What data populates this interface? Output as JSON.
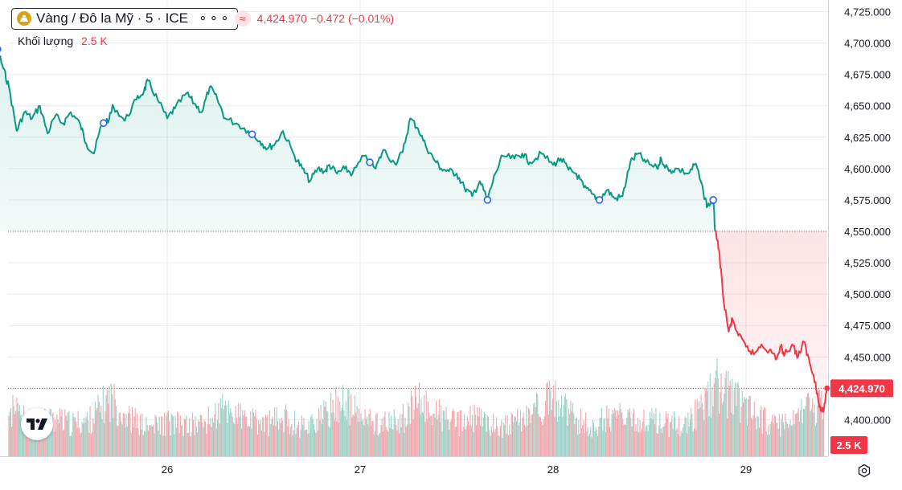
{
  "legend": {
    "symbol_title": "Vàng / Đô la Mỹ · 5 · ICE",
    "more_icon": "⚬⚬⚬",
    "price_summary": "4,424.970  −0.472 (−0.01%)",
    "volume_label": "Khối lượng",
    "volume_value": "2.5 K",
    "wave_icon": "≈"
  },
  "icons": [
    "gold-icon",
    "more-icon",
    "wave-icon",
    "tradingview-logo-icon",
    "settings-gear-icon"
  ],
  "colors": {
    "up": "#089981",
    "down": "#f23645",
    "vol_up": "#9ad2c6",
    "vol_down": "#f5a3aa",
    "label_bg": "#f23645",
    "grid": "#e8eaee"
  },
  "chart_data": {
    "type": "line",
    "title": "",
    "xlabel": "",
    "ylabel": "",
    "x_ticks": [
      "26",
      "27",
      "28",
      "29"
    ],
    "x_day_range": [
      25.0,
      29.44
    ],
    "y_ticks": [
      "4,725.000",
      "4,700.000",
      "4,675.000",
      "4,650.000",
      "4,625.000",
      "4,600.000",
      "4,575.000",
      "4,550.000",
      "4,525.000",
      "4,500.000",
      "4,475.000",
      "4,450.000",
      "4,425.000",
      "4,400.000"
    ],
    "ylim": [
      4383,
      4727
    ],
    "baseline": 4550,
    "last_price": 4424.97,
    "last_price_label": "4,424.970",
    "volume_label": "2.5 K",
    "grid": true,
    "series": [
      {
        "color": "#089981",
        "x": [
          25.0,
          25.05,
          25.1,
          25.12,
          25.15,
          25.18,
          25.22,
          25.26,
          25.3,
          25.34,
          25.38,
          25.42,
          25.46,
          25.5,
          25.55,
          25.58,
          25.62,
          25.66,
          25.7,
          25.72,
          25.78,
          25.84,
          25.88,
          25.9,
          25.95,
          26.0,
          26.04,
          26.1,
          26.14,
          26.18,
          26.22,
          26.26,
          26.3,
          26.36,
          26.42,
          26.48,
          26.52,
          26.56,
          26.6,
          26.66,
          26.7,
          26.74,
          26.78,
          26.82,
          26.84,
          26.88,
          26.92,
          26.96,
          27.02,
          27.08,
          27.12,
          27.18,
          27.22,
          27.26,
          27.3,
          27.34,
          27.38,
          27.42,
          27.46,
          27.5,
          27.54,
          27.58,
          27.62,
          27.66,
          27.7,
          27.74,
          27.8,
          27.84,
          27.88,
          27.94,
          28.0,
          28.04,
          28.08,
          28.12,
          28.16,
          28.2,
          28.24,
          28.28,
          28.32,
          28.36,
          28.4,
          28.44,
          28.48,
          28.54,
          28.56,
          28.6,
          28.64,
          28.7,
          28.74,
          28.78,
          28.8,
          28.83,
          28.84
        ],
        "y": [
          4655,
          4668,
          4675,
          4695,
          4680,
          4665,
          4630,
          4645,
          4640,
          4650,
          4628,
          4642,
          4636,
          4645,
          4635,
          4620,
          4612,
          4635,
          4640,
          4650,
          4638,
          4655,
          4662,
          4670,
          4655,
          4640,
          4648,
          4660,
          4652,
          4645,
          4665,
          4655,
          4640,
          4636,
          4630,
          4622,
          4616,
          4620,
          4630,
          4610,
          4600,
          4590,
          4600,
          4598,
          4603,
          4596,
          4600,
          4596,
          4610,
          4600,
          4615,
          4604,
          4613,
          4640,
          4632,
          4618,
          4608,
          4600,
          4598,
          4596,
          4585,
          4578,
          4590,
          4575,
          4596,
          4610,
          4608,
          4612,
          4605,
          4612,
          4603,
          4608,
          4599,
          4596,
          4585,
          4580,
          4575,
          4583,
          4576,
          4578,
          4605,
          4612,
          4605,
          4600,
          4608,
          4598,
          4600,
          4596,
          4604,
          4580,
          4570,
          4575,
          4550
        ]
      },
      {
        "color": "#f23645",
        "x": [
          28.84,
          28.86,
          28.88,
          28.91,
          28.93,
          28.96,
          29.0,
          29.04,
          29.08,
          29.12,
          29.16,
          29.18,
          29.2,
          29.24,
          29.27,
          29.3,
          29.33,
          29.36,
          29.38,
          29.4,
          29.42
        ],
        "y": [
          4550,
          4535,
          4500,
          4470,
          4480,
          4467,
          4458,
          4452,
          4460,
          4455,
          4449,
          4458,
          4452,
          4460,
          4450,
          4462,
          4445,
          4430,
          4410,
          4406,
          4425
        ]
      }
    ],
    "markers_x": [
      25.12,
      25.67,
      26.44,
      27.05,
      27.66,
      28.24,
      28.83
    ],
    "volume": {
      "x": [
        25.0,
        25.1,
        25.2,
        25.3,
        25.4,
        25.5,
        25.6,
        25.7,
        25.8,
        25.9,
        26.0,
        26.1,
        26.2,
        26.3,
        26.4,
        26.5,
        26.6,
        26.7,
        26.8,
        26.9,
        27.0,
        27.1,
        27.2,
        27.3,
        27.4,
        27.5,
        27.6,
        27.7,
        27.8,
        27.9,
        28.0,
        28.1,
        28.2,
        28.3,
        28.4,
        28.5,
        28.6,
        28.7,
        28.8,
        28.85,
        28.9,
        29.0,
        29.1,
        29.2,
        29.3,
        29.4
      ],
      "y": [
        1.5,
        2.7,
        2.2,
        1.6,
        1.9,
        1.6,
        1.8,
        2.9,
        1.9,
        1.4,
        1.7,
        1.5,
        1.7,
        2.4,
        1.8,
        1.6,
        1.9,
        1.5,
        1.9,
        2.8,
        1.9,
        1.6,
        1.7,
        2.7,
        2.1,
        1.6,
        1.9,
        1.5,
        1.6,
        2.3,
        2.9,
        1.9,
        1.4,
        2.1,
        1.7,
        1.8,
        1.6,
        1.7,
        2.8,
        3.6,
        3.1,
        2.6,
        1.7,
        1.5,
        2.2,
        2.5
      ]
    }
  }
}
